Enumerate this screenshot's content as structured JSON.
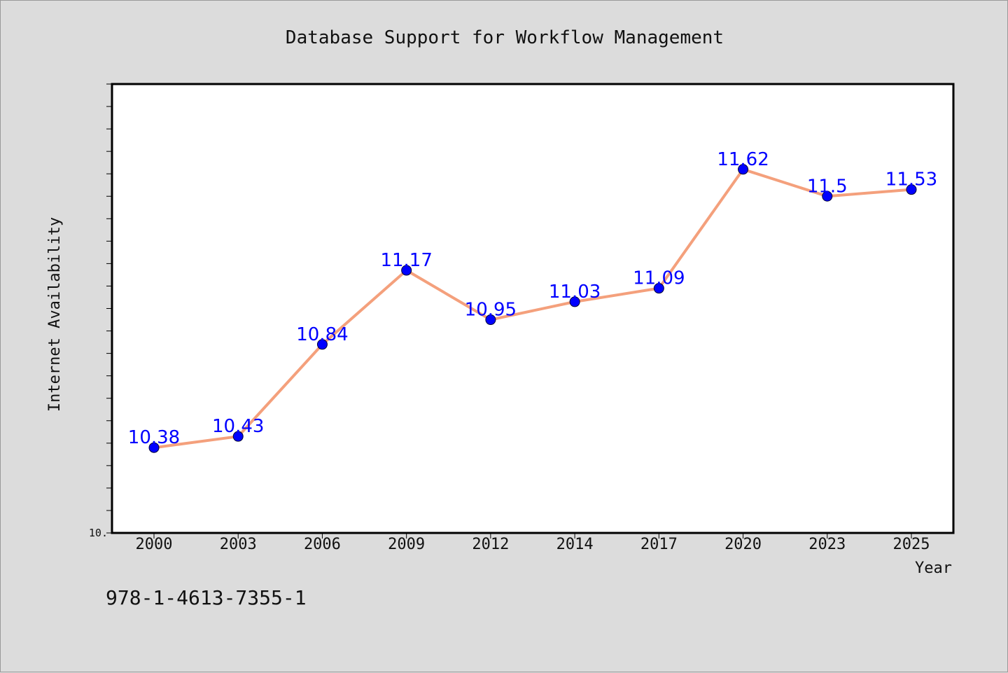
{
  "chart_data": {
    "type": "line",
    "title": "Database Support for Workflow Management",
    "xlabel": "Year",
    "ylabel": "Internet Availability",
    "categories": [
      "2000",
      "2003",
      "2006",
      "2009",
      "2012",
      "2014",
      "2017",
      "2020",
      "2023",
      "2025"
    ],
    "series": [
      {
        "values": [
          10.38,
          10.43,
          10.84,
          11.17,
          10.95,
          11.03,
          11.09,
          11.62,
          11.5,
          11.53
        ],
        "labels": [
          "10.38",
          "10.43",
          "10.84",
          "11.17",
          "10.95",
          "11.03",
          "11.09",
          "11.62",
          "11.5",
          "11.53"
        ]
      }
    ],
    "ylim": [
      10.0,
      12.0
    ],
    "ytick_labels": [
      {
        "value": 10.0,
        "text": "10."
      }
    ],
    "y_minor_step": 0.1,
    "grid": false,
    "legend": "none",
    "colors": {
      "line": "#f4a07c",
      "marker": "#0000ff",
      "data_label": "#0000ff",
      "background": "#dcdcdc",
      "plot_background": "#ffffff"
    }
  },
  "footer": {
    "code": "978-1-4613-7355-1"
  }
}
